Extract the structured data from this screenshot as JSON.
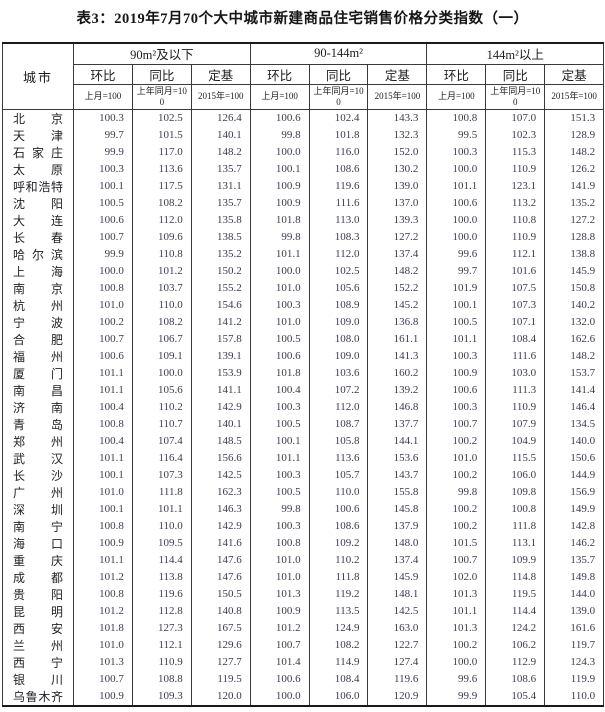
{
  "title": "表3：2019年7月70个大中城市新建商品住宅销售价格分类指数（一）",
  "table": {
    "city_header": "城市",
    "groups": [
      {
        "label": "90m²及以下"
      },
      {
        "label": "90-144m²"
      },
      {
        "label": "144m²以上"
      }
    ],
    "sub_headers": [
      "环比",
      "同比",
      "定基"
    ],
    "unit_headers": [
      "上月=100",
      "上年同月=100",
      "2015年=100"
    ],
    "rows": [
      {
        "city": "北京",
        "values": [
          "100.3",
          "102.5",
          "126.4",
          "100.6",
          "102.4",
          "143.3",
          "100.8",
          "107.0",
          "151.3"
        ]
      },
      {
        "city": "天津",
        "values": [
          "99.7",
          "101.5",
          "140.1",
          "99.8",
          "101.8",
          "132.3",
          "99.5",
          "102.3",
          "128.9"
        ]
      },
      {
        "city": "石家庄",
        "values": [
          "99.9",
          "117.0",
          "148.2",
          "100.0",
          "116.0",
          "152.0",
          "100.3",
          "115.3",
          "148.2"
        ]
      },
      {
        "city": "太原",
        "values": [
          "100.3",
          "113.6",
          "135.7",
          "100.1",
          "108.6",
          "130.2",
          "100.0",
          "110.9",
          "126.2"
        ]
      },
      {
        "city": "呼和浩特",
        "values": [
          "100.1",
          "117.5",
          "131.1",
          "100.9",
          "119.6",
          "139.0",
          "101.1",
          "123.1",
          "141.9"
        ]
      },
      {
        "city": "沈阳",
        "values": [
          "100.5",
          "108.2",
          "135.7",
          "100.9",
          "111.6",
          "137.0",
          "100.6",
          "113.2",
          "135.2"
        ]
      },
      {
        "city": "大连",
        "values": [
          "100.6",
          "112.0",
          "135.8",
          "101.8",
          "113.0",
          "139.3",
          "100.0",
          "110.8",
          "127.2"
        ]
      },
      {
        "city": "长春",
        "values": [
          "100.7",
          "109.6",
          "138.5",
          "99.8",
          "108.3",
          "127.2",
          "100.0",
          "110.9",
          "128.8"
        ]
      },
      {
        "city": "哈尔滨",
        "values": [
          "99.9",
          "110.8",
          "135.2",
          "101.1",
          "112.0",
          "137.4",
          "99.6",
          "112.1",
          "138.8"
        ]
      },
      {
        "city": "上海",
        "values": [
          "100.0",
          "101.2",
          "150.2",
          "100.0",
          "102.5",
          "148.2",
          "99.7",
          "101.6",
          "145.9"
        ]
      },
      {
        "city": "南京",
        "values": [
          "100.8",
          "103.7",
          "155.2",
          "101.0",
          "105.6",
          "152.2",
          "101.9",
          "107.5",
          "150.8"
        ]
      },
      {
        "city": "杭州",
        "values": [
          "101.0",
          "110.0",
          "154.6",
          "100.3",
          "108.9",
          "145.2",
          "100.1",
          "107.3",
          "140.2"
        ]
      },
      {
        "city": "宁波",
        "values": [
          "100.2",
          "108.2",
          "141.2",
          "101.0",
          "109.0",
          "136.8",
          "100.5",
          "107.1",
          "132.0"
        ]
      },
      {
        "city": "合肥",
        "values": [
          "100.7",
          "106.7",
          "157.8",
          "100.5",
          "108.0",
          "161.1",
          "101.1",
          "108.4",
          "162.6"
        ]
      },
      {
        "city": "福州",
        "values": [
          "100.6",
          "109.1",
          "139.1",
          "100.6",
          "109.0",
          "141.3",
          "100.3",
          "111.6",
          "148.2"
        ]
      },
      {
        "city": "厦门",
        "values": [
          "101.1",
          "100.0",
          "153.9",
          "101.8",
          "103.6",
          "160.2",
          "100.9",
          "103.0",
          "153.7"
        ]
      },
      {
        "city": "南昌",
        "values": [
          "101.1",
          "105.6",
          "141.1",
          "100.4",
          "107.2",
          "139.2",
          "100.6",
          "111.3",
          "141.4"
        ]
      },
      {
        "city": "济南",
        "values": [
          "100.4",
          "110.2",
          "142.9",
          "100.3",
          "112.0",
          "146.8",
          "100.3",
          "110.9",
          "146.4"
        ]
      },
      {
        "city": "青岛",
        "values": [
          "100.8",
          "110.7",
          "140.1",
          "100.5",
          "108.7",
          "137.7",
          "100.7",
          "107.9",
          "134.5"
        ]
      },
      {
        "city": "郑州",
        "values": [
          "100.4",
          "107.4",
          "148.5",
          "100.1",
          "105.8",
          "144.1",
          "100.2",
          "104.9",
          "140.0"
        ]
      },
      {
        "city": "武汉",
        "values": [
          "101.1",
          "116.4",
          "156.6",
          "101.1",
          "113.6",
          "153.6",
          "101.0",
          "115.5",
          "150.6"
        ]
      },
      {
        "city": "长沙",
        "values": [
          "100.1",
          "107.3",
          "142.5",
          "100.3",
          "105.7",
          "143.7",
          "100.2",
          "106.0",
          "144.9"
        ]
      },
      {
        "city": "广州",
        "values": [
          "101.0",
          "111.8",
          "162.3",
          "100.5",
          "110.0",
          "155.8",
          "99.8",
          "109.8",
          "156.9"
        ]
      },
      {
        "city": "深圳",
        "values": [
          "100.1",
          "101.1",
          "146.3",
          "99.8",
          "100.6",
          "145.8",
          "100.2",
          "100.8",
          "149.9"
        ]
      },
      {
        "city": "南宁",
        "values": [
          "100.8",
          "110.0",
          "142.9",
          "100.3",
          "108.6",
          "137.9",
          "100.2",
          "111.8",
          "142.8"
        ]
      },
      {
        "city": "海口",
        "values": [
          "100.9",
          "109.5",
          "141.6",
          "100.8",
          "109.2",
          "148.0",
          "101.5",
          "113.1",
          "146.2"
        ]
      },
      {
        "city": "重庆",
        "values": [
          "101.1",
          "114.4",
          "147.6",
          "101.0",
          "110.2",
          "137.4",
          "100.7",
          "109.9",
          "135.7"
        ]
      },
      {
        "city": "成都",
        "values": [
          "101.2",
          "113.8",
          "147.6",
          "101.0",
          "111.8",
          "145.9",
          "102.0",
          "114.8",
          "149.8"
        ]
      },
      {
        "city": "贵阳",
        "values": [
          "100.8",
          "119.6",
          "150.5",
          "101.3",
          "119.2",
          "148.1",
          "101.3",
          "119.5",
          "144.0"
        ]
      },
      {
        "city": "昆明",
        "values": [
          "101.2",
          "112.8",
          "140.8",
          "100.9",
          "113.5",
          "142.5",
          "101.1",
          "114.4",
          "139.0"
        ]
      },
      {
        "city": "西安",
        "values": [
          "101.8",
          "127.3",
          "167.5",
          "101.2",
          "124.9",
          "163.0",
          "101.3",
          "124.2",
          "161.6"
        ]
      },
      {
        "city": "兰州",
        "values": [
          "101.0",
          "112.1",
          "129.6",
          "100.7",
          "108.2",
          "122.7",
          "100.2",
          "106.2",
          "119.7"
        ]
      },
      {
        "city": "西宁",
        "values": [
          "101.3",
          "110.9",
          "127.7",
          "101.4",
          "114.9",
          "127.4",
          "100.0",
          "112.9",
          "124.3"
        ]
      },
      {
        "city": "银川",
        "values": [
          "100.7",
          "108.8",
          "119.5",
          "100.6",
          "108.4",
          "119.6",
          "99.6",
          "108.6",
          "119.9"
        ]
      },
      {
        "city": "乌鲁木齐",
        "values": [
          "100.9",
          "109.3",
          "120.0",
          "100.0",
          "106.0",
          "120.9",
          "99.9",
          "105.4",
          "110.0"
        ]
      }
    ]
  }
}
